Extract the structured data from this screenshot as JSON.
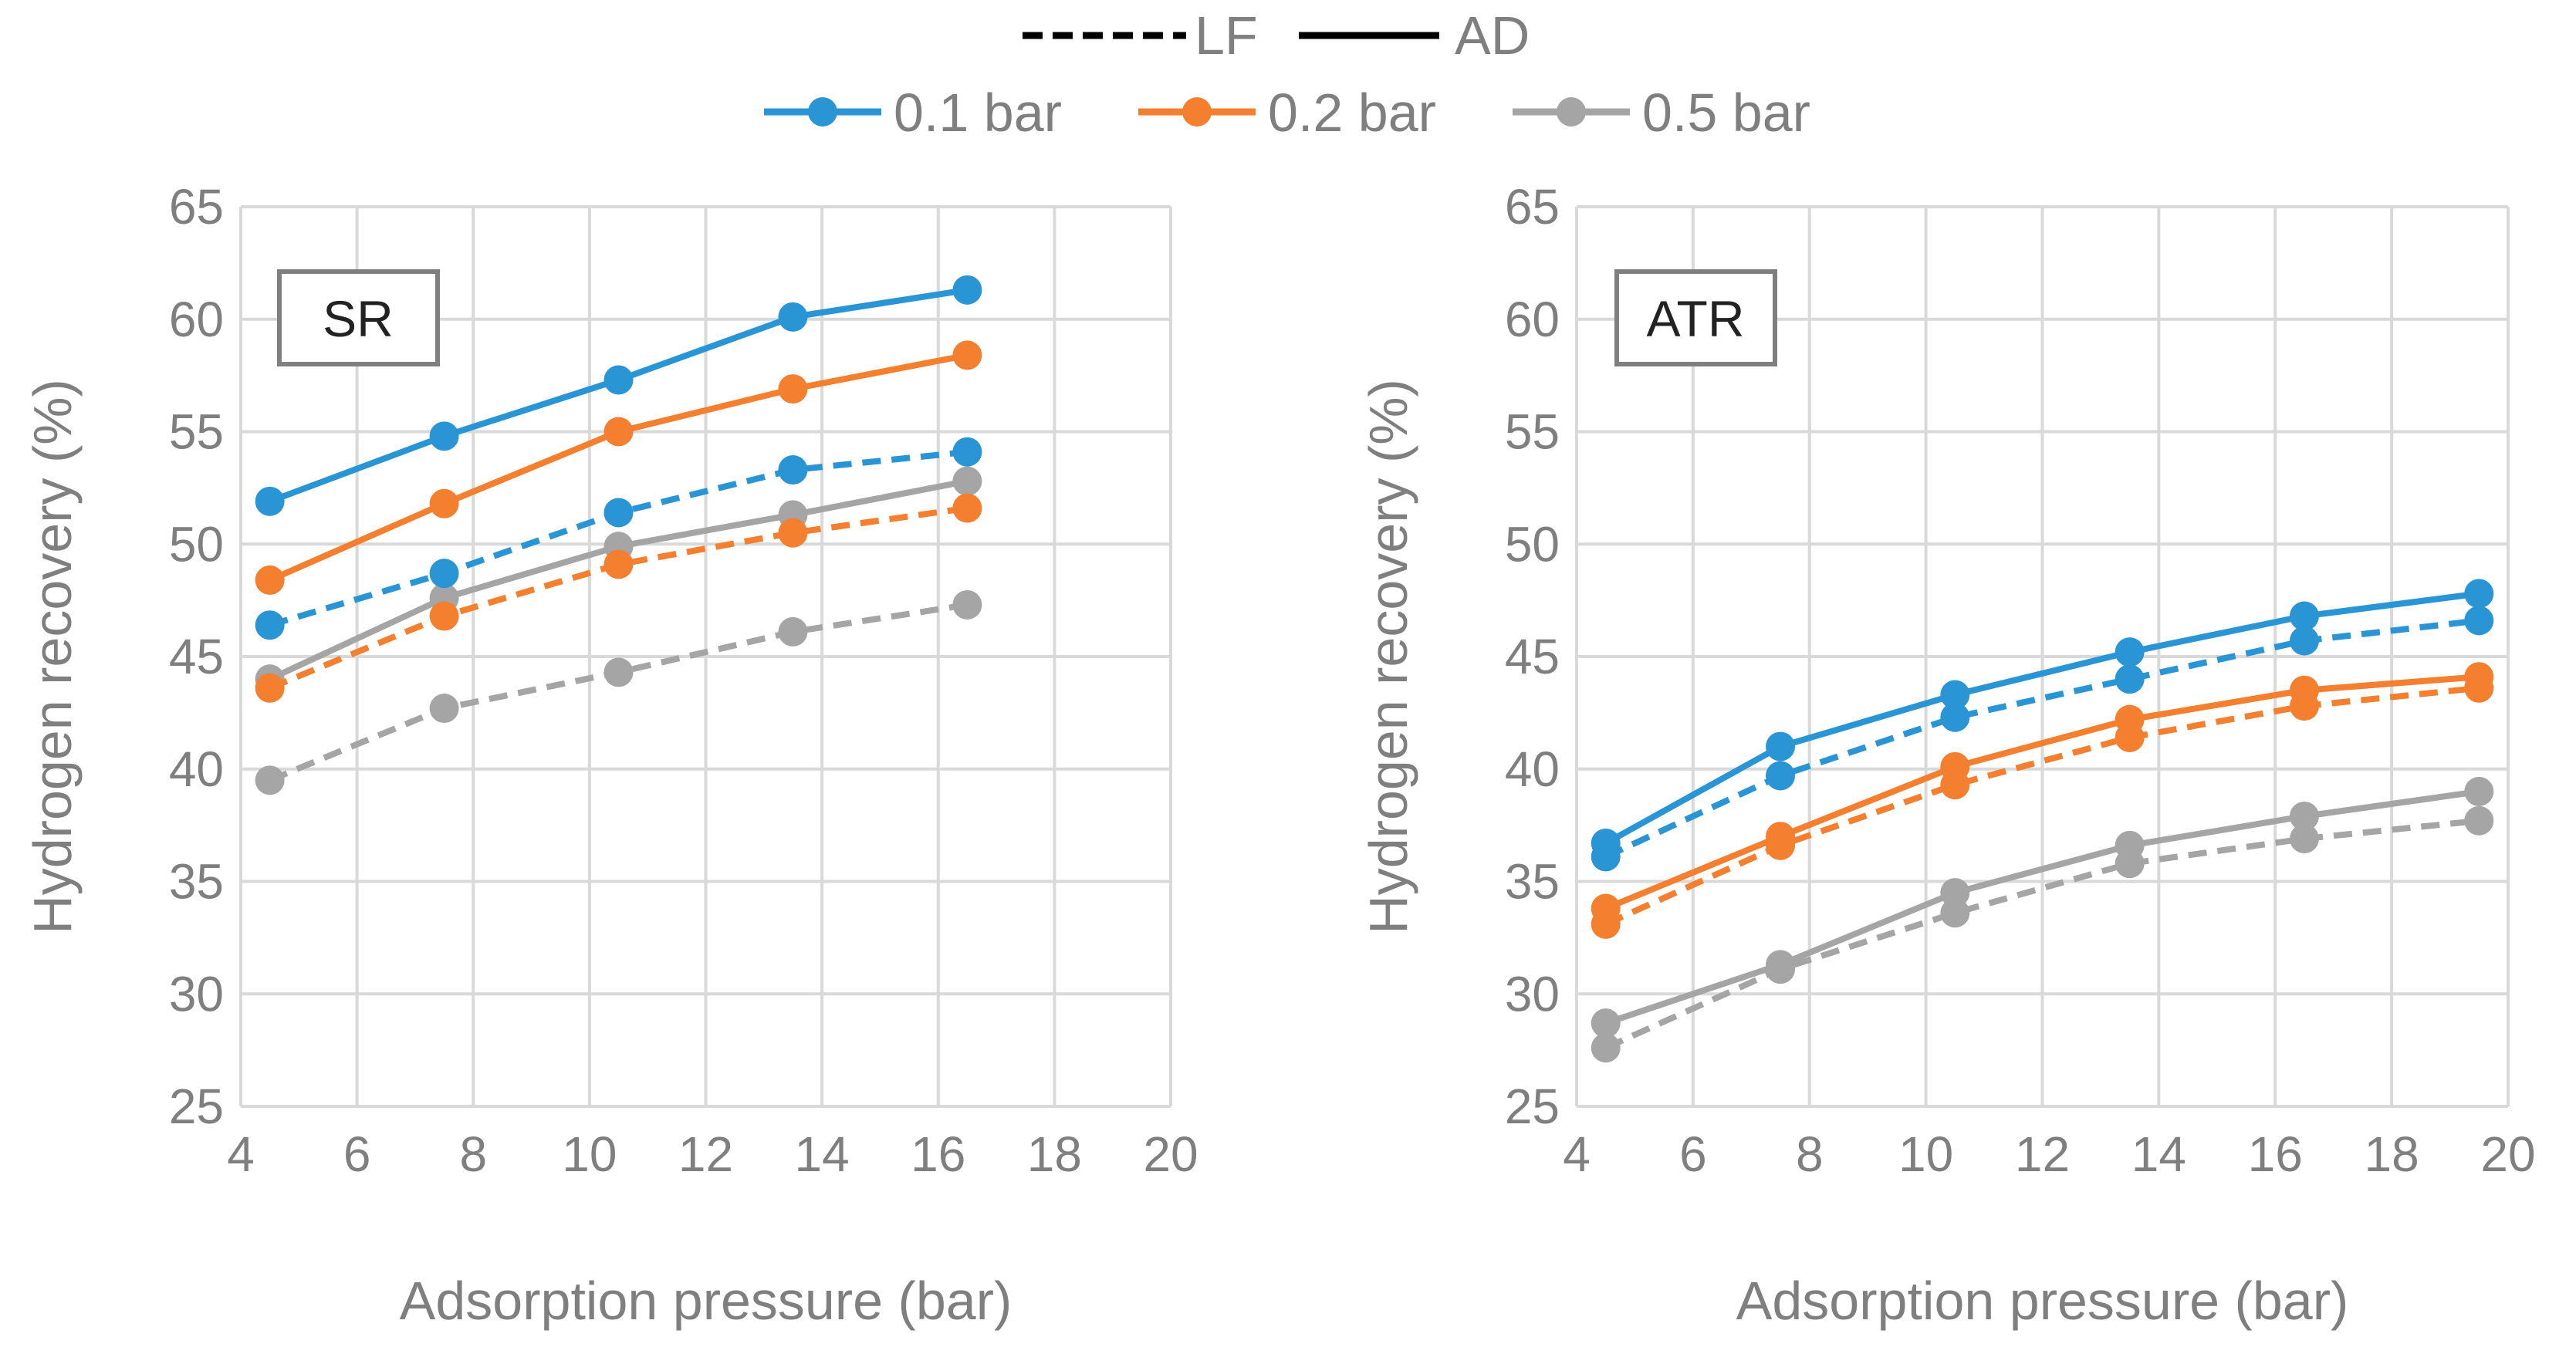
{
  "legend": {
    "style_items": [
      {
        "label": "LF",
        "dash": "dashed"
      },
      {
        "label": "AD",
        "dash": "solid"
      }
    ],
    "color_items": [
      {
        "label": "0.1 bar",
        "color": "#2a95d5"
      },
      {
        "label": "0.2 bar",
        "color": "#f47f2f"
      },
      {
        "label": "0.5 bar",
        "color": "#a5a5a5"
      }
    ]
  },
  "chart_data": [
    {
      "type": "line",
      "panel_label": "SR",
      "xlabel": "Adsorption pressure (bar)",
      "ylabel": "Hydrogen recovery (%)",
      "xlim": [
        4,
        20
      ],
      "ylim": [
        25,
        65
      ],
      "xticks": [
        4,
        6,
        8,
        10,
        12,
        14,
        16,
        18,
        20
      ],
      "yticks": [
        25,
        30,
        35,
        40,
        45,
        50,
        55,
        60,
        65
      ],
      "grid": true,
      "x": [
        4.5,
        7.5,
        10.5,
        13.5,
        16.5
      ],
      "series": [
        {
          "name": "0.1 bar AD",
          "pressure": "0.1 bar",
          "mode": "AD",
          "values": [
            51.9,
            54.8,
            57.3,
            60.1,
            61.3
          ]
        },
        {
          "name": "0.2 bar AD",
          "pressure": "0.2 bar",
          "mode": "AD",
          "values": [
            48.4,
            51.8,
            55.0,
            56.9,
            58.4
          ]
        },
        {
          "name": "0.5 bar AD",
          "pressure": "0.5 bar",
          "mode": "AD",
          "values": [
            44.0,
            47.6,
            49.9,
            51.3,
            52.8
          ]
        },
        {
          "name": "0.1 bar LF",
          "pressure": "0.1 bar",
          "mode": "LF",
          "values": [
            46.4,
            48.7,
            51.4,
            53.3,
            54.1
          ]
        },
        {
          "name": "0.2 bar LF",
          "pressure": "0.2 bar",
          "mode": "LF",
          "values": [
            43.6,
            46.8,
            49.1,
            50.5,
            51.6
          ]
        },
        {
          "name": "0.5 bar LF",
          "pressure": "0.5 bar",
          "mode": "LF",
          "values": [
            39.5,
            42.7,
            44.3,
            46.1,
            47.3
          ]
        }
      ]
    },
    {
      "type": "line",
      "panel_label": "ATR",
      "xlabel": "Adsorption pressure (bar)",
      "ylabel": "Hydrogen recovery (%)",
      "xlim": [
        4,
        20
      ],
      "ylim": [
        25,
        65
      ],
      "xticks": [
        4,
        6,
        8,
        10,
        12,
        14,
        16,
        18,
        20
      ],
      "yticks": [
        25,
        30,
        35,
        40,
        45,
        50,
        55,
        60,
        65
      ],
      "grid": true,
      "x": [
        4.5,
        7.5,
        10.5,
        13.5,
        16.5,
        19.5
      ],
      "series": [
        {
          "name": "0.1 bar AD",
          "pressure": "0.1 bar",
          "mode": "AD",
          "values": [
            36.7,
            41.0,
            43.3,
            45.2,
            46.8,
            47.8
          ]
        },
        {
          "name": "0.2 bar AD",
          "pressure": "0.2 bar",
          "mode": "AD",
          "values": [
            33.8,
            37.0,
            40.1,
            42.2,
            43.5,
            44.1
          ]
        },
        {
          "name": "0.5 bar AD",
          "pressure": "0.5 bar",
          "mode": "AD",
          "values": [
            28.7,
            31.3,
            34.5,
            36.6,
            37.9,
            39.0
          ]
        },
        {
          "name": "0.1 bar LF",
          "pressure": "0.1 bar",
          "mode": "LF",
          "values": [
            36.1,
            39.7,
            42.3,
            44.0,
            45.7,
            46.6
          ]
        },
        {
          "name": "0.2 bar LF",
          "pressure": "0.2 bar",
          "mode": "LF",
          "values": [
            33.1,
            36.6,
            39.3,
            41.4,
            42.8,
            43.6
          ]
        },
        {
          "name": "0.5 bar LF",
          "pressure": "0.5 bar",
          "mode": "LF",
          "values": [
            27.6,
            31.1,
            33.6,
            35.8,
            36.9,
            37.7
          ]
        }
      ]
    }
  ]
}
